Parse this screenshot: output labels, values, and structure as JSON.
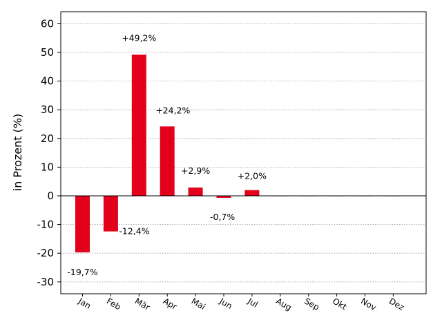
{
  "chart_data": {
    "type": "bar",
    "ylabel": "in Prozent (%)",
    "xlabel": "",
    "title": "",
    "categories": [
      "Jan",
      "Feb",
      "Mär",
      "Apr",
      "Mai",
      "Jun",
      "Jul",
      "Aug",
      "Sep",
      "Okt",
      "Nov",
      "Dez"
    ],
    "values": [
      -19.7,
      -12.4,
      49.2,
      24.2,
      2.9,
      -0.7,
      2.0,
      0,
      0,
      0,
      0,
      0
    ],
    "data_labels": [
      "-19,7%",
      "-12,4%",
      "+49,2%",
      "+24,2%",
      "+2,9%",
      "-0,7%",
      "+2,0%",
      "",
      "",
      "",
      "",
      ""
    ],
    "ylim": [
      -34,
      64
    ],
    "yticks": [
      60,
      50,
      40,
      30,
      20,
      10,
      0,
      -10,
      -20,
      -30
    ],
    "ytick_labels": [
      "60",
      "50",
      "40",
      "30",
      "20",
      "10",
      "0",
      "-10",
      "-20",
      "-30"
    ],
    "grid": true,
    "bar_color": "#e2001a"
  }
}
